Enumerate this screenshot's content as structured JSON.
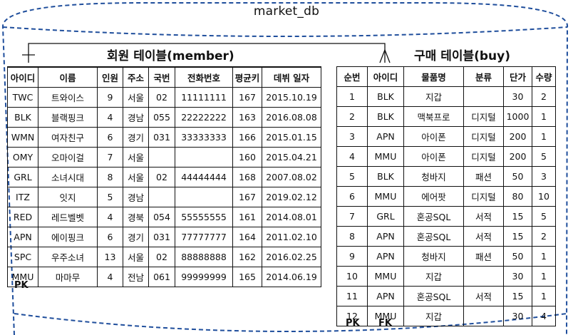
{
  "database": {
    "name": "market_db"
  },
  "member_table": {
    "title": "회원 테이블(member)",
    "columns": [
      "아이디",
      "이름",
      "인원",
      "주소",
      "국번",
      "전화번호",
      "평균키",
      "데뷔 일자"
    ],
    "rows": [
      [
        "TWC",
        "트와이스",
        "9",
        "서울",
        "02",
        "11111111",
        "167",
        "2015.10.19"
      ],
      [
        "BLK",
        "블랙핑크",
        "4",
        "경남",
        "055",
        "22222222",
        "163",
        "2016.08.08"
      ],
      [
        "WMN",
        "여자친구",
        "6",
        "경기",
        "031",
        "33333333",
        "166",
        "2015.01.15"
      ],
      [
        "OMY",
        "오마이걸",
        "7",
        "서울",
        "",
        "",
        "160",
        "2015.04.21"
      ],
      [
        "GRL",
        "소녀시대",
        "8",
        "서울",
        "02",
        "44444444",
        "168",
        "2007.08.02"
      ],
      [
        "ITZ",
        "잇지",
        "5",
        "경남",
        "",
        "",
        "167",
        "2019.02.12"
      ],
      [
        "RED",
        "레드벨벳",
        "4",
        "경북",
        "054",
        "55555555",
        "161",
        "2014.08.01"
      ],
      [
        "APN",
        "에이핑크",
        "6",
        "경기",
        "031",
        "77777777",
        "164",
        "2011.02.10"
      ],
      [
        "SPC",
        "우주소녀",
        "13",
        "서울",
        "02",
        "88888888",
        "162",
        "2016.02.25"
      ],
      [
        "MMU",
        "마마무",
        "4",
        "전남",
        "061",
        "99999999",
        "165",
        "2014.06.19"
      ]
    ],
    "key_label": "PK"
  },
  "buy_table": {
    "title": "구매 테이블(buy)",
    "columns": [
      "순번",
      "아이디",
      "물품명",
      "분류",
      "단가",
      "수량"
    ],
    "rows": [
      [
        "1",
        "BLK",
        "지갑",
        "",
        "30",
        "2"
      ],
      [
        "2",
        "BLK",
        "맥북프로",
        "디지털",
        "1000",
        "1"
      ],
      [
        "3",
        "APN",
        "아이폰",
        "디지털",
        "200",
        "1"
      ],
      [
        "4",
        "MMU",
        "아이폰",
        "디지털",
        "200",
        "5"
      ],
      [
        "5",
        "BLK",
        "청바지",
        "패션",
        "50",
        "3"
      ],
      [
        "6",
        "MMU",
        "에어팟",
        "디지털",
        "80",
        "10"
      ],
      [
        "7",
        "GRL",
        "혼공SQL",
        "서적",
        "15",
        "5"
      ],
      [
        "8",
        "APN",
        "혼공SQL",
        "서적",
        "15",
        "2"
      ],
      [
        "9",
        "APN",
        "청바지",
        "패션",
        "50",
        "1"
      ],
      [
        "10",
        "MMU",
        "지갑",
        "",
        "30",
        "1"
      ],
      [
        "11",
        "APN",
        "혼공SQL",
        "서적",
        "15",
        "1"
      ],
      [
        "12",
        "MMU",
        "지갑",
        "",
        "30",
        "4"
      ]
    ],
    "key_labels": [
      "PK",
      "FK"
    ]
  },
  "colors": {
    "frame": "#1f4e9c",
    "line": "#111111"
  }
}
